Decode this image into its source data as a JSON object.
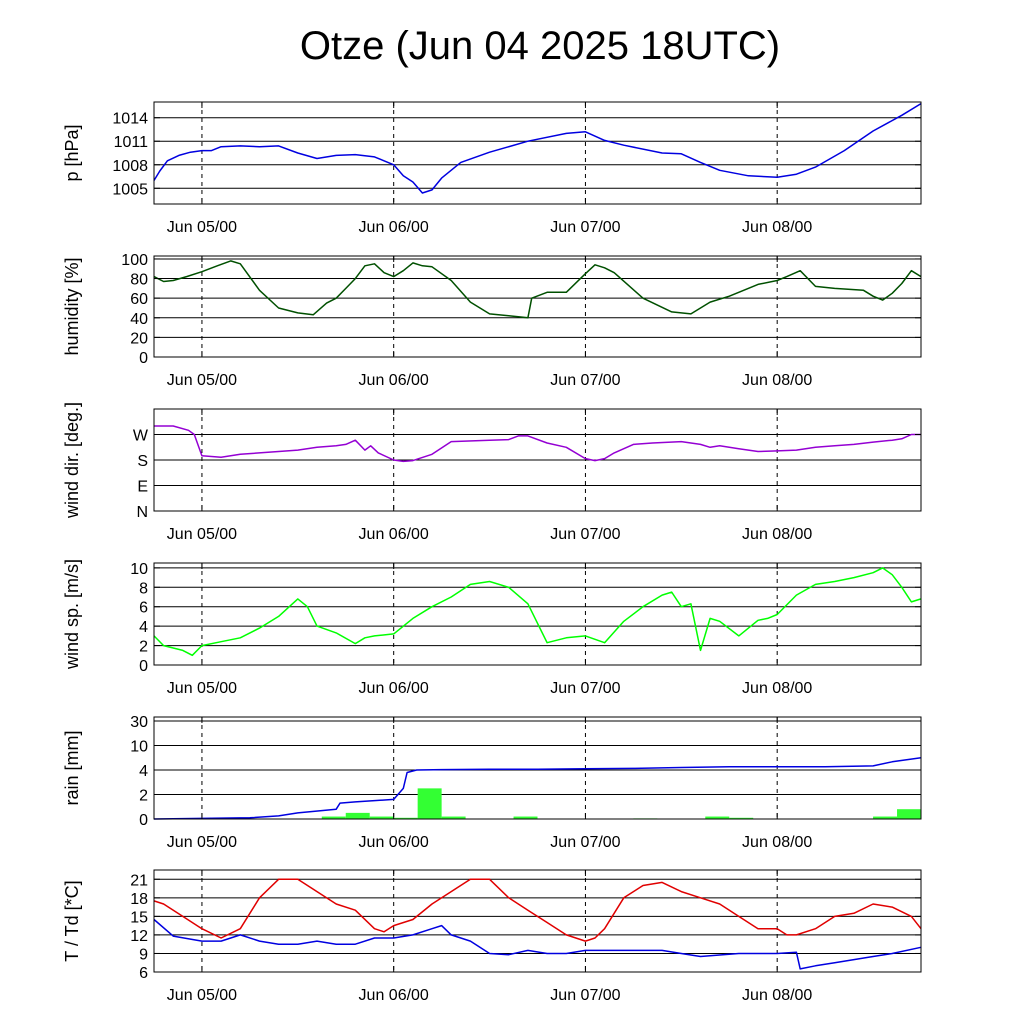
{
  "title": "Otze (Jun 04 2025 18UTC)",
  "time_axis": {
    "xlim": [
      -0.25,
      3.75
    ],
    "tick_values": [
      0,
      1,
      2,
      3
    ],
    "tick_labels": [
      "Jun 05/00",
      "Jun 06/00",
      "Jun 07/00",
      "Jun 08/00"
    ]
  },
  "colors": {
    "pressure": "#0000e0",
    "humidity": "#005000",
    "wind_dir": "#9400d3",
    "wind_speed": "#00ff00",
    "rain_bar": "#33ff33",
    "rain_cum": "#0000e0",
    "temperature": "#e00000",
    "dewpoint": "#0000e0"
  },
  "chart_data": [
    {
      "type": "line",
      "ylabel": "p [hPa]",
      "ylim": [
        1003,
        1016
      ],
      "yticks": [
        1005,
        1008,
        1011,
        1014
      ],
      "yticklabels": [
        "1005",
        "1008",
        "1011",
        "1014"
      ],
      "series": [
        {
          "color_key": "pressure",
          "x": [
            -0.25,
            -0.22,
            -0.18,
            -0.12,
            -0.06,
            0,
            0.05,
            0.1,
            0.2,
            0.3,
            0.4,
            0.5,
            0.6,
            0.7,
            0.8,
            0.9,
            1.0,
            1.05,
            1.1,
            1.15,
            1.2,
            1.25,
            1.35,
            1.5,
            1.7,
            1.9,
            2.0,
            2.1,
            2.2,
            2.4,
            2.5,
            2.6,
            2.7,
            2.85,
            3.0,
            3.1,
            3.2,
            3.35,
            3.5,
            3.65,
            3.75
          ],
          "y": [
            1006,
            1007.2,
            1008.5,
            1009.2,
            1009.6,
            1009.8,
            1009.8,
            1010.3,
            1010.4,
            1010.3,
            1010.4,
            1009.5,
            1008.8,
            1009.2,
            1009.3,
            1009.0,
            1008.0,
            1006.6,
            1005.8,
            1004.4,
            1004.8,
            1006.3,
            1008.3,
            1009.6,
            1011.0,
            1012.0,
            1012.2,
            1011.1,
            1010.5,
            1009.5,
            1009.4,
            1008.3,
            1007.3,
            1006.6,
            1006.4,
            1006.8,
            1007.7,
            1009.8,
            1012.3,
            1014.3,
            1015.8
          ]
        }
      ]
    },
    {
      "type": "line",
      "ylabel": "humidity [%]",
      "ylim": [
        0,
        103
      ],
      "yticks": [
        0,
        20,
        40,
        60,
        80,
        100
      ],
      "yticklabels": [
        "0",
        "20",
        "40",
        "60",
        "80",
        "100"
      ],
      "series": [
        {
          "color_key": "humidity",
          "x": [
            -0.25,
            -0.2,
            -0.15,
            -0.08,
            0,
            0.08,
            0.15,
            0.2,
            0.3,
            0.4,
            0.5,
            0.58,
            0.65,
            0.7,
            0.75,
            0.8,
            0.85,
            0.9,
            0.95,
            1.0,
            1.05,
            1.1,
            1.15,
            1.2,
            1.3,
            1.4,
            1.5,
            1.6,
            1.7,
            1.72,
            1.8,
            1.9,
            2.0,
            2.05,
            2.1,
            2.15,
            2.3,
            2.45,
            2.55,
            2.65,
            2.75,
            2.8,
            2.9,
            3.0,
            3.05,
            3.12,
            3.2,
            3.3,
            3.45,
            3.5,
            3.55,
            3.6,
            3.65,
            3.7,
            3.75
          ],
          "y": [
            82,
            77,
            78,
            82,
            87,
            93,
            98,
            95,
            68,
            50,
            45,
            43,
            55,
            60,
            70,
            80,
            93,
            95,
            86,
            82,
            88,
            96,
            93,
            92,
            78,
            56,
            44,
            42,
            40,
            60,
            66,
            66,
            85,
            94,
            91,
            86,
            60,
            46,
            44,
            56,
            62,
            66,
            74,
            78,
            82,
            88,
            72,
            70,
            68,
            62,
            58,
            65,
            75,
            88,
            82
          ]
        }
      ]
    },
    {
      "type": "line",
      "ylabel": "wind dir. [deg.]",
      "ylim": [
        0,
        360
      ],
      "yticks": [
        0,
        90,
        180,
        270
      ],
      "yticklabels": [
        "N",
        "E",
        "S",
        "W"
      ],
      "series": [
        {
          "color_key": "wind_dir",
          "x": [
            -0.25,
            -0.15,
            -0.07,
            -0.04,
            0,
            0.1,
            0.2,
            0.4,
            0.5,
            0.6,
            0.7,
            0.75,
            0.8,
            0.85,
            0.88,
            0.92,
            1.0,
            1.05,
            1.1,
            1.2,
            1.3,
            1.5,
            1.6,
            1.65,
            1.7,
            1.8,
            1.9,
            2.0,
            2.05,
            2.1,
            2.15,
            2.25,
            2.35,
            2.5,
            2.6,
            2.65,
            2.7,
            2.8,
            2.85,
            2.9,
            3.0,
            3.1,
            3.2,
            3.3,
            3.4,
            3.5,
            3.6,
            3.65,
            3.7,
            3.75
          ],
          "y": [
            300,
            300,
            285,
            270,
            195,
            190,
            200,
            210,
            215,
            225,
            230,
            235,
            250,
            215,
            230,
            205,
            180,
            175,
            178,
            200,
            245,
            250,
            252,
            265,
            265,
            240,
            225,
            185,
            178,
            185,
            205,
            235,
            240,
            245,
            235,
            225,
            230,
            220,
            215,
            210,
            212,
            215,
            225,
            230,
            235,
            243,
            250,
            255,
            270,
            270
          ]
        }
      ]
    },
    {
      "type": "line",
      "ylabel": "wind sp. [m/s]",
      "ylim": [
        0,
        10.5
      ],
      "yticks": [
        0,
        2,
        4,
        6,
        8,
        10
      ],
      "yticklabels": [
        "0",
        "2",
        "4",
        "6",
        "8",
        "10"
      ],
      "series": [
        {
          "color_key": "wind_speed",
          "x": [
            -0.25,
            -0.2,
            -0.1,
            -0.05,
            0,
            0.1,
            0.2,
            0.3,
            0.4,
            0.5,
            0.55,
            0.6,
            0.7,
            0.8,
            0.85,
            0.9,
            1.0,
            1.1,
            1.2,
            1.3,
            1.4,
            1.5,
            1.6,
            1.7,
            1.8,
            1.9,
            2.0,
            2.1,
            2.2,
            2.3,
            2.4,
            2.45,
            2.5,
            2.55,
            2.6,
            2.65,
            2.7,
            2.8,
            2.9,
            2.95,
            3.0,
            3.1,
            3.2,
            3.3,
            3.4,
            3.5,
            3.55,
            3.6,
            3.65,
            3.7,
            3.75
          ],
          "y": [
            3,
            2,
            1.5,
            1,
            2,
            2.4,
            2.8,
            3.8,
            5,
            6.8,
            6,
            4,
            3.3,
            2.2,
            2.8,
            3,
            3.2,
            4.8,
            6,
            7,
            8.3,
            8.6,
            8,
            6.3,
            2.3,
            2.8,
            3,
            2.3,
            4.5,
            6,
            7.2,
            7.5,
            6,
            6.3,
            1.5,
            4.8,
            4.5,
            3,
            4.6,
            4.8,
            5.2,
            7.2,
            8.3,
            8.6,
            9,
            9.5,
            10,
            9.3,
            8,
            6.5,
            6.8
          ]
        }
      ]
    },
    {
      "type": "bar+line",
      "ylabel": "rain [mm]",
      "ylim": [
        0,
        32
      ],
      "yticks": [
        0,
        2,
        4,
        10,
        30
      ],
      "yticklabels": [
        "0",
        "2",
        "4",
        "10",
        "30"
      ],
      "bars": {
        "color_key": "rain_bar",
        "bin_width": 0.125,
        "x": [
          0.625,
          0.75,
          0.875,
          1.0,
          1.125,
          1.25,
          1.625,
          2.25,
          2.625,
          2.75,
          3.5,
          3.625
        ],
        "y": [
          0.2,
          0.5,
          0.2,
          0.1,
          2.5,
          0.2,
          0.2,
          0.05,
          0.2,
          0.1,
          0.2,
          0.8
        ]
      },
      "cumulative": {
        "color_key": "rain_cum",
        "x": [
          -0.25,
          0,
          0.25,
          0.4,
          0.5,
          0.7,
          0.72,
          0.8,
          0.9,
          1.0,
          1.05,
          1.07,
          1.12,
          1.25,
          1.5,
          1.75,
          2.0,
          2.25,
          2.5,
          2.75,
          3.0,
          3.25,
          3.5,
          3.6,
          3.75
        ],
        "y": [
          0,
          0.05,
          0.1,
          0.25,
          0.5,
          0.8,
          1.3,
          1.4,
          1.5,
          1.6,
          2.5,
          3.8,
          4.0,
          4.1,
          4.2,
          4.2,
          4.3,
          4.4,
          4.6,
          4.8,
          4.8,
          4.8,
          5.0,
          6.0,
          7.0
        ]
      }
    },
    {
      "type": "line",
      "ylabel": "T / Td [*C]",
      "ylim": [
        6,
        22.5
      ],
      "yticks": [
        6,
        9,
        12,
        15,
        18,
        21
      ],
      "yticklabels": [
        "6",
        "9",
        "12",
        "15",
        "18",
        "21"
      ],
      "series": [
        {
          "name": "T",
          "color_key": "temperature",
          "x": [
            -0.25,
            -0.2,
            -0.1,
            0,
            0.1,
            0.2,
            0.3,
            0.4,
            0.5,
            0.6,
            0.7,
            0.8,
            0.9,
            0.95,
            1.0,
            1.1,
            1.2,
            1.3,
            1.4,
            1.5,
            1.6,
            1.7,
            1.8,
            1.9,
            2.0,
            2.05,
            2.1,
            2.2,
            2.3,
            2.4,
            2.5,
            2.6,
            2.7,
            2.8,
            2.9,
            3.0,
            3.05,
            3.1,
            3.2,
            3.3,
            3.4,
            3.5,
            3.6,
            3.7,
            3.75
          ],
          "y": [
            17.5,
            17,
            15,
            13,
            11.5,
            13,
            18,
            21,
            21,
            19,
            17,
            16,
            13,
            12.5,
            13.5,
            14.5,
            17,
            19,
            21,
            21,
            18,
            16,
            14,
            12,
            11,
            11.5,
            13,
            18,
            20,
            20.5,
            19,
            18,
            17,
            15,
            13,
            13,
            12,
            12,
            13,
            15,
            15.5,
            17,
            16.5,
            15,
            13
          ]
        },
        {
          "name": "Td",
          "color_key": "dewpoint",
          "x": [
            -0.25,
            -0.15,
            0,
            0.1,
            0.2,
            0.3,
            0.4,
            0.5,
            0.6,
            0.7,
            0.8,
            0.9,
            1.0,
            1.1,
            1.2,
            1.25,
            1.3,
            1.4,
            1.5,
            1.6,
            1.7,
            1.8,
            1.9,
            2.0,
            2.2,
            2.4,
            2.5,
            2.6,
            2.8,
            3.0,
            3.1,
            3.12,
            3.2,
            3.3,
            3.4,
            3.5,
            3.6,
            3.75
          ],
          "y": [
            14.5,
            11.8,
            11,
            11,
            12,
            11,
            10.5,
            10.5,
            11,
            10.5,
            10.5,
            11.5,
            11.5,
            12,
            13,
            13.5,
            12,
            11,
            9,
            8.8,
            9.5,
            9,
            9,
            9.5,
            9.5,
            9.5,
            9,
            8.5,
            9,
            9,
            9.2,
            6.5,
            7,
            7.5,
            8,
            8.5,
            9,
            10
          ]
        }
      ]
    }
  ]
}
